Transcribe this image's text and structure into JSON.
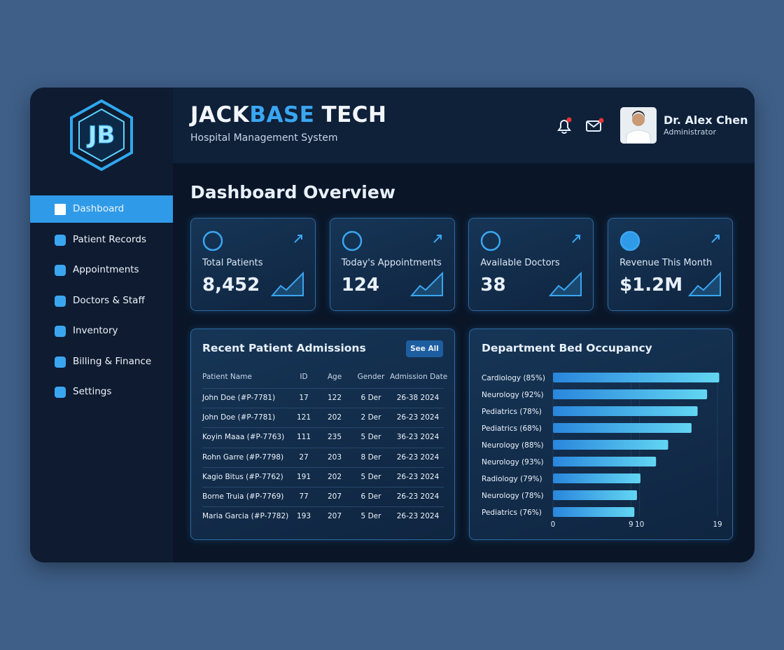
{
  "header": {
    "logo": "JB",
    "brand": [
      "JACK",
      "BASE",
      "TECH"
    ],
    "subtitle": "Hospital Management System",
    "user": {
      "name": "Dr. Alex Chen",
      "role": "Administrator"
    }
  },
  "sidebar": {
    "items": [
      {
        "label": "Dashboard",
        "active": true
      },
      {
        "label": "Patient Records"
      },
      {
        "label": "Appointments"
      },
      {
        "label": "Doctors & Staff"
      },
      {
        "label": "Inventory"
      },
      {
        "label": "Billing & Finance"
      },
      {
        "label": "Settings"
      }
    ]
  },
  "page_title": "Dashboard Overview",
  "stats": [
    {
      "label": "Total Patients",
      "value": "8,452"
    },
    {
      "label": "Today's Appointments",
      "value": "124"
    },
    {
      "label": "Available Doctors",
      "value": "38"
    },
    {
      "label": "Revenue This Month",
      "value": "$1.2M"
    }
  ],
  "admissions": {
    "title": "Recent Patient Admissions",
    "button": "See All",
    "columns": [
      "Patient Name",
      "ID",
      "Age",
      "Gender",
      "Admission Date"
    ],
    "rows": [
      [
        "John Doe (#P-7781)",
        "17",
        "122",
        "6 Der",
        "26-38 2024"
      ],
      [
        "John Doe (#P-7781)",
        "121",
        "202",
        "2 Der",
        "26-23 2024"
      ],
      [
        "Koyin Maaa (#P-7763)",
        "111",
        "235",
        "5 Der",
        "36-23 2024"
      ],
      [
        "Rohn Garre (#P-7798)",
        "27",
        "203",
        "8 Der",
        "26-23 2024"
      ],
      [
        "Kagio Bitus (#P-7762)",
        "191",
        "202",
        "5 Der",
        "26-23 2024"
      ],
      [
        "Borne Truia (#P-7769)",
        "77",
        "207",
        "6 Der",
        "26-23 2024"
      ],
      [
        "Maria Garcia (#P-7782)",
        "193",
        "207",
        "5 Der",
        "26-23 2024"
      ]
    ]
  },
  "bed_occupancy": {
    "chart_data": {
      "type": "bar",
      "orientation": "horizontal",
      "title": "Department Bed Occupancy",
      "categories": [
        "Cardiology (85%)",
        "Neurology (92%)",
        "Pediatrics (78%)",
        "Pediatrics (68%)",
        "Neurology (88%)",
        "Neurology (93%)",
        "Radiology (79%)",
        "Neurology (78%)",
        "Pediatrics (76%)"
      ],
      "values": [
        19.2,
        17.8,
        16.7,
        16.0,
        13.3,
        11.9,
        10.1,
        9.7,
        9.4
      ],
      "xlim": [
        0,
        19
      ],
      "xticks": [
        0,
        9,
        10,
        19
      ],
      "grid": true
    }
  }
}
